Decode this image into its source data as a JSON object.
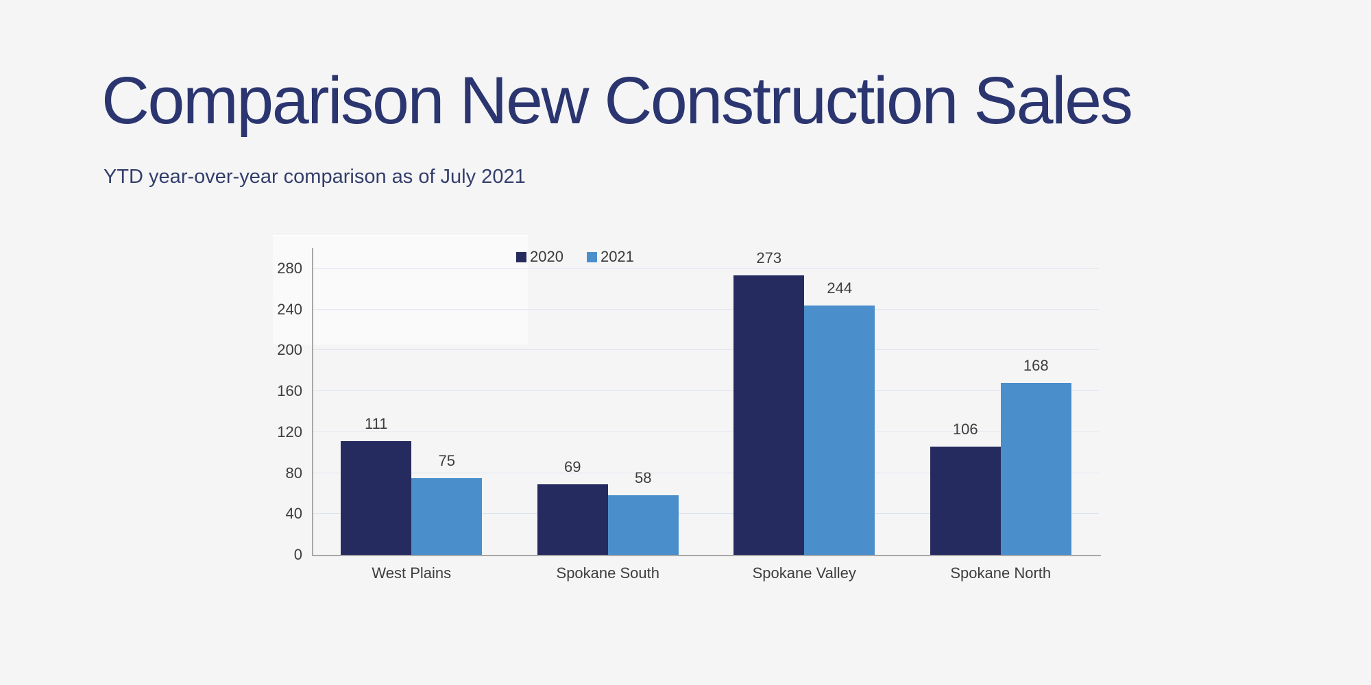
{
  "page": {
    "title": "Comparison New Construction Sales",
    "subtitle": "YTD year-over-year comparison as of July 2021"
  },
  "colors": {
    "background": "#f5f5f6",
    "title_text": "#2b356f",
    "subtitle_text": "#333e6b",
    "gridline": "#dde3ee",
    "axis_line": "#a8a8a8",
    "label_text": "#3d3d3d"
  },
  "chart_data": {
    "type": "bar",
    "title": "Comparison New Construction Sales",
    "subtitle": "YTD year-over-year comparison as of July 2021",
    "categories": [
      "West Plains",
      "Spokane South",
      "Spokane Valley",
      "Spokane North"
    ],
    "series": [
      {
        "name": "2020",
        "color": "#262b5f",
        "values": [
          111,
          69,
          273,
          106
        ]
      },
      {
        "name": "2021",
        "color": "#4b8ecc",
        "values": [
          75,
          58,
          244,
          168
        ]
      }
    ],
    "yticks": [
      0,
      40,
      80,
      120,
      160,
      200,
      240,
      280
    ],
    "ylim": [
      0,
      300
    ],
    "grid": "horizontal",
    "legend_position": "top-left-inside-plot",
    "xlabel": "",
    "ylabel": ""
  }
}
